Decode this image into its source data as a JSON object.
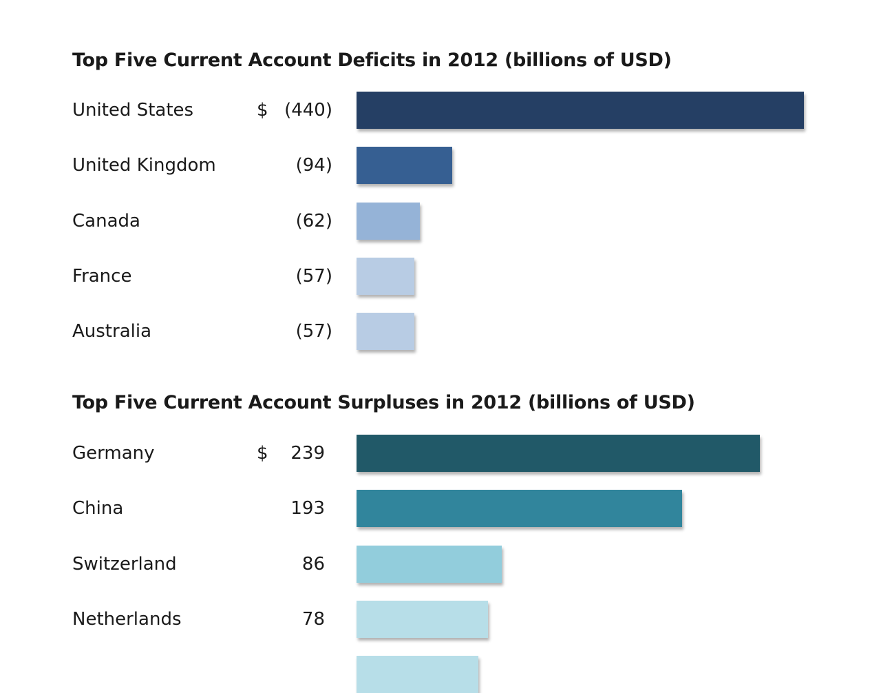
{
  "chart_data": [
    {
      "type": "bar",
      "orientation": "horizontal",
      "title": "Top Five Current Account Deficits in 2012 (billions of USD)",
      "categories": [
        "United States",
        "United Kingdom",
        "Canada",
        "France",
        "Australia"
      ],
      "values": [
        -440,
        -94,
        -62,
        -57,
        -57
      ],
      "value_labels": [
        "(440)",
        "(94)",
        "(62)",
        "(57)",
        "(57)"
      ],
      "currency_symbol": "$",
      "colors": [
        "#253f64",
        "#365f92",
        "#95b3d7",
        "#b8cce4",
        "#b8cce4"
      ],
      "grid": false
    },
    {
      "type": "bar",
      "orientation": "horizontal",
      "title": "Top Five Current Account Surpluses in 2012 (billions of USD)",
      "categories": [
        "Germany",
        "China",
        "Switzerland",
        "Netherlands",
        ""
      ],
      "values": [
        239,
        193,
        86,
        78,
        72
      ],
      "value_labels": [
        "239",
        "193",
        "86",
        "78",
        ""
      ],
      "currency_symbol": "$",
      "colors": [
        "#215968",
        "#31859c",
        "#92cddc",
        "#b7dee8",
        "#b7dee8"
      ],
      "grid": false
    }
  ]
}
